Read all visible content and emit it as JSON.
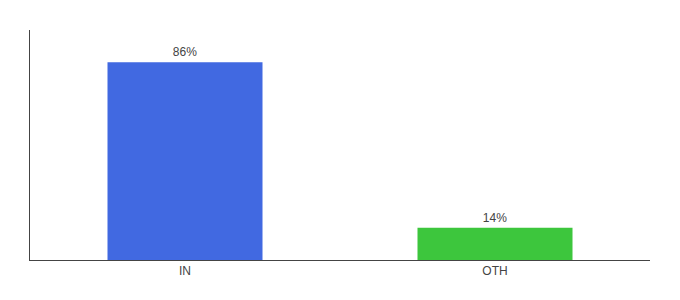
{
  "chart_data": {
    "type": "bar",
    "categories": [
      "IN",
      "OTH"
    ],
    "values": [
      86,
      14
    ],
    "value_labels": [
      "86%",
      "14%"
    ],
    "colors": [
      "#4169e1",
      "#3dc63d"
    ],
    "ylim": [
      0,
      100
    ],
    "data_labels": true,
    "tick_labels": "x",
    "grid": false
  }
}
